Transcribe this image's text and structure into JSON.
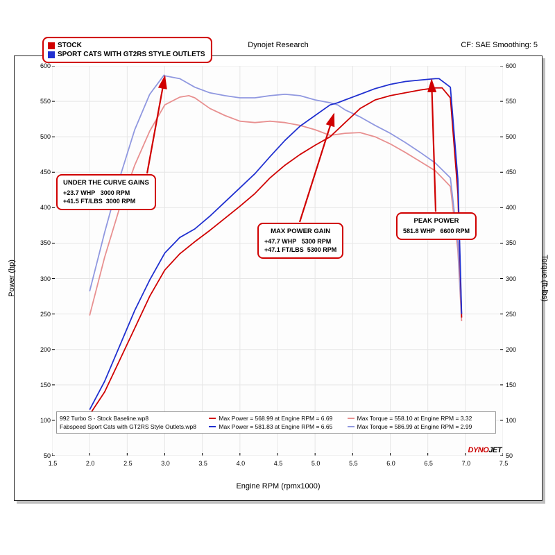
{
  "header": {
    "title": "Dynojet Research",
    "cf": "CF: SAE Smoothing: 5"
  },
  "legend": {
    "items": [
      {
        "color": "#d00000",
        "label": "STOCK"
      },
      {
        "color": "#2030d0",
        "label": "SPORT CATS WITH GT2RS STYLE OUTLETS"
      }
    ],
    "border": "#d00000"
  },
  "axes": {
    "xlabel": "Engine RPM (rpmx1000)",
    "ylabel_left": "Power (hp)",
    "ylabel_right": "Torque (ft-lbs)",
    "xlim": [
      1.5,
      7.5
    ],
    "ylim": [
      50,
      600
    ],
    "xticks": [
      1.5,
      2.0,
      2.5,
      3.0,
      3.5,
      4.0,
      4.5,
      5.0,
      5.5,
      6.0,
      6.5,
      7.0,
      7.5
    ],
    "yticks": [
      50,
      100,
      150,
      200,
      250,
      300,
      350,
      400,
      450,
      500,
      550,
      600
    ],
    "grid_color": "#e6e6e6",
    "axis_color": "#000000",
    "label_fontsize": 11,
    "tick_fontsize": 9
  },
  "callouts": {
    "under_curve": {
      "title": "UNDER THE CURVE GAINS",
      "line1a": "+23.7 WHP",
      "line1b": "3000 RPM",
      "line2a": "+41.5 FT/LBS",
      "line2b": "3000 RPM",
      "arrow_to_rpm": 3.0,
      "arrow_to_val": 585
    },
    "max_power_gain": {
      "title": "MAX POWER GAIN",
      "line1a": "+47.7 WHP",
      "line1b": "5300 RPM",
      "line2a": "+47.1 FT/LBS",
      "line2b": "5300 RPM",
      "arrow_to_rpm": 5.25,
      "arrow_to_val": 532
    },
    "peak_power": {
      "title": "PEAK POWER",
      "line1a": "581.8 WHP",
      "line1b": "6600 RPM",
      "arrow_to_rpm": 6.55,
      "arrow_to_val": 580
    }
  },
  "bottom_legend": {
    "file1": "992 Turbo S - Stock Baseline.wp8",
    "file2": "Fabspeed Sport Cats with GT2RS Style Outlets.wp8",
    "mp1": "Max Power = 568.99 at Engine RPM = 6.69",
    "mp1_color": "#d00000",
    "mp2": "Max Power = 581.83 at Engine RPM = 6.65",
    "mp2_color": "#2030d0",
    "mt1": "Max Torque = 558.10 at Engine RPM = 3.32",
    "mt1_color": "#e89090",
    "mt2": "Max Torque = 586.99 at Engine RPM = 2.99",
    "mt2_color": "#9098e0"
  },
  "logo": {
    "red": "DYNO",
    "black": "JET"
  },
  "series": {
    "stock_power": {
      "color": "#d00000",
      "width": 1.8,
      "rpm": [
        2.0,
        2.2,
        2.4,
        2.6,
        2.8,
        3.0,
        3.2,
        3.4,
        3.6,
        3.8,
        4.0,
        4.2,
        4.4,
        4.6,
        4.8,
        5.0,
        5.2,
        5.4,
        5.6,
        5.8,
        6.0,
        6.2,
        6.4,
        6.6,
        6.69,
        6.8,
        6.9,
        6.95
      ],
      "val": [
        108,
        140,
        185,
        230,
        275,
        312,
        335,
        352,
        368,
        385,
        402,
        420,
        442,
        460,
        475,
        488,
        500,
        520,
        540,
        552,
        558,
        562,
        566,
        569,
        569,
        555,
        420,
        245
      ]
    },
    "sport_power": {
      "color": "#2030d0",
      "width": 1.8,
      "rpm": [
        2.0,
        2.2,
        2.4,
        2.6,
        2.8,
        3.0,
        3.2,
        3.4,
        3.6,
        3.8,
        4.0,
        4.2,
        4.4,
        4.6,
        4.8,
        5.0,
        5.2,
        5.3,
        5.4,
        5.6,
        5.8,
        6.0,
        6.2,
        6.4,
        6.6,
        6.65,
        6.8,
        6.9,
        6.95
      ],
      "val": [
        115,
        155,
        205,
        255,
        298,
        336,
        358,
        370,
        388,
        408,
        428,
        448,
        472,
        495,
        515,
        530,
        545,
        548,
        552,
        560,
        568,
        574,
        578,
        580,
        582,
        582,
        570,
        440,
        250
      ]
    },
    "stock_torque": {
      "color": "#e89090",
      "width": 1.8,
      "rpm": [
        2.0,
        2.2,
        2.4,
        2.6,
        2.8,
        3.0,
        3.2,
        3.32,
        3.4,
        3.6,
        3.8,
        4.0,
        4.2,
        4.4,
        4.6,
        4.8,
        5.0,
        5.2,
        5.4,
        5.6,
        5.8,
        6.0,
        6.2,
        6.4,
        6.6,
        6.8,
        6.9,
        6.95
      ],
      "val": [
        248,
        330,
        400,
        460,
        508,
        545,
        556,
        558,
        555,
        540,
        530,
        522,
        520,
        522,
        520,
        516,
        510,
        502,
        505,
        506,
        500,
        490,
        478,
        465,
        452,
        430,
        340,
        240
      ]
    },
    "sport_torque": {
      "color": "#9098e0",
      "width": 1.8,
      "rpm": [
        2.0,
        2.2,
        2.4,
        2.6,
        2.8,
        2.99,
        3.0,
        3.2,
        3.4,
        3.6,
        3.8,
        4.0,
        4.2,
        4.4,
        4.6,
        4.8,
        5.0,
        5.2,
        5.3,
        5.4,
        5.6,
        5.8,
        6.0,
        6.2,
        6.4,
        6.6,
        6.8,
        6.9,
        6.95
      ],
      "val": [
        282,
        365,
        442,
        510,
        560,
        587,
        586,
        582,
        570,
        562,
        558,
        555,
        555,
        558,
        560,
        558,
        552,
        548,
        545,
        538,
        528,
        516,
        505,
        492,
        478,
        463,
        442,
        350,
        245
      ]
    }
  }
}
